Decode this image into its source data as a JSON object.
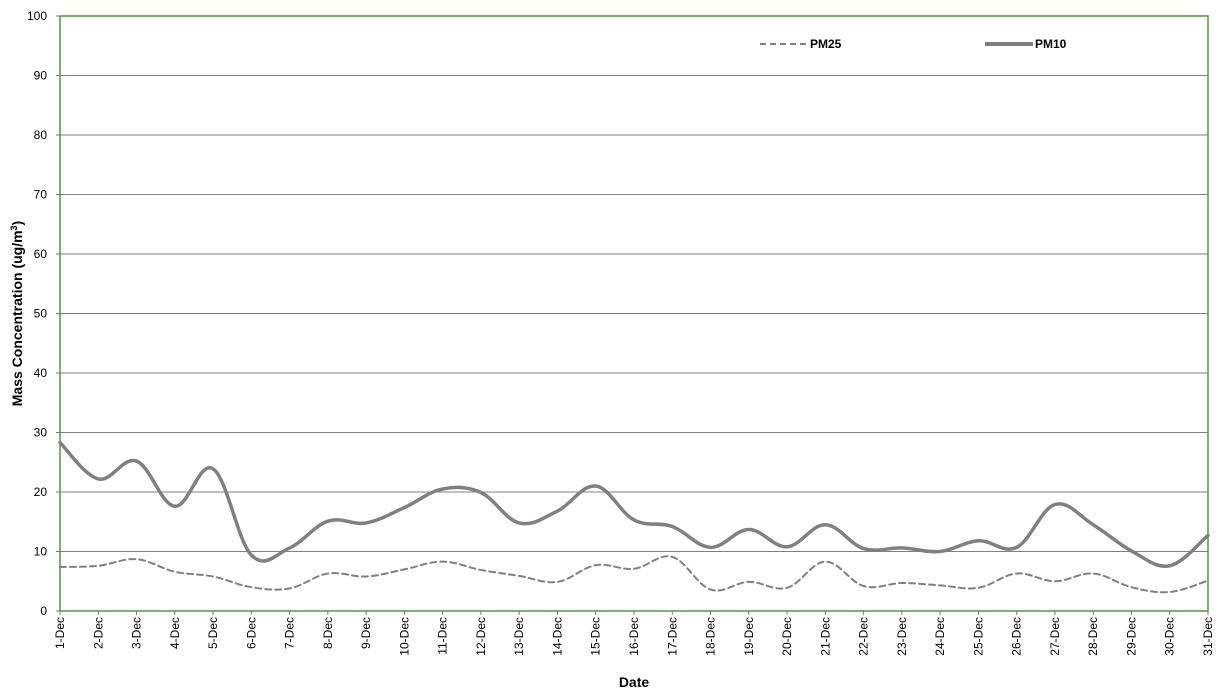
{
  "chart_data": {
    "type": "line",
    "xlabel": "Date",
    "ylabel": "Mass Concentration (ug/m",
    "ylabel_superscript": "3",
    "ylabel_suffix": ")",
    "ylim": [
      0,
      100
    ],
    "yticks": [
      0,
      10,
      20,
      30,
      40,
      50,
      60,
      70,
      80,
      90,
      100
    ],
    "grid": true,
    "legend_position": "top-right",
    "categories": [
      "1-Dec",
      "2-Dec",
      "3-Dec",
      "4-Dec",
      "5-Dec",
      "6-Dec",
      "7-Dec",
      "8-Dec",
      "9-Dec",
      "10-Dec",
      "11-Dec",
      "12-Dec",
      "13-Dec",
      "14-Dec",
      "15-Dec",
      "16-Dec",
      "17-Dec",
      "18-Dec",
      "19-Dec",
      "20-Dec",
      "21-Dec",
      "22-Dec",
      "23-Dec",
      "24-Dec",
      "25-Dec",
      "26-Dec",
      "27-Dec",
      "28-Dec",
      "29-Dec",
      "30-Dec",
      "31-Dec"
    ],
    "series": [
      {
        "name": "PM25",
        "style": "dashed",
        "color": "#808080",
        "values": [
          7.4,
          7.6,
          8.7,
          6.6,
          5.8,
          4.0,
          3.8,
          6.3,
          5.8,
          7.0,
          8.3,
          6.9,
          5.9,
          4.9,
          7.7,
          7.1,
          9.1,
          3.6,
          4.9,
          3.9,
          8.3,
          4.2,
          4.7,
          4.3,
          3.9,
          6.3,
          5.0,
          6.3,
          4.0,
          3.2,
          5.1
        ]
      },
      {
        "name": "PM10",
        "style": "solid",
        "color": "#808080",
        "values": [
          28.3,
          22.2,
          25.2,
          17.6,
          23.9,
          9.4,
          10.6,
          15.1,
          14.8,
          17.4,
          20.5,
          19.9,
          14.8,
          16.8,
          21.0,
          15.3,
          14.2,
          10.7,
          13.7,
          10.8,
          14.5,
          10.5,
          10.6,
          10.0,
          11.8,
          10.7,
          17.9,
          14.5,
          10.1,
          7.6,
          12.7
        ]
      }
    ]
  },
  "colors": {
    "plot_border": "#4e9a3a",
    "grid": "#808080",
    "series": "#808080"
  }
}
